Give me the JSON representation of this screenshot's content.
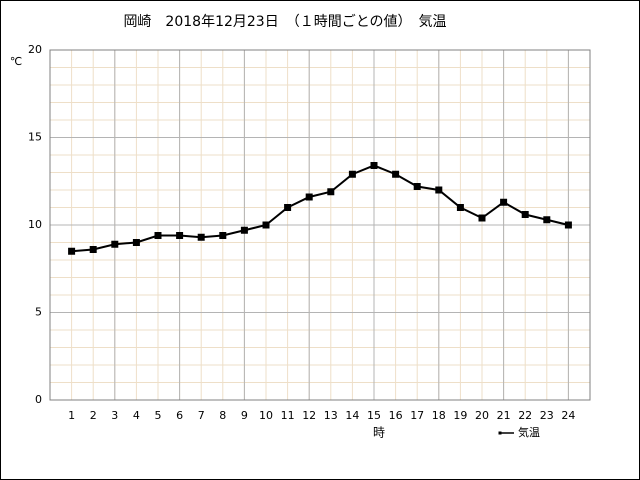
{
  "chart_data": {
    "type": "line",
    "title": "岡崎　2018年12月23日　（１時間ごとの値）　気温",
    "ylabel": "℃",
    "xlabel": "時",
    "x": [
      1,
      2,
      3,
      4,
      5,
      6,
      7,
      8,
      9,
      10,
      11,
      12,
      13,
      14,
      15,
      16,
      17,
      18,
      19,
      20,
      21,
      22,
      23,
      24
    ],
    "series": [
      {
        "name": "気温",
        "color": "#000000",
        "values": [
          8.5,
          8.6,
          8.9,
          9.0,
          9.4,
          9.4,
          9.3,
          9.4,
          9.7,
          10.0,
          11.0,
          11.6,
          11.9,
          12.9,
          13.4,
          12.9,
          12.2,
          12.0,
          11.0,
          10.4,
          11.3,
          10.6,
          10.3,
          10.0
        ]
      }
    ],
    "xlim": [
      0,
      25
    ],
    "xticks": [
      1,
      2,
      3,
      4,
      5,
      6,
      7,
      8,
      9,
      10,
      11,
      12,
      13,
      14,
      15,
      16,
      17,
      18,
      19,
      20,
      21,
      22,
      23,
      24
    ],
    "ylim": [
      0,
      20
    ],
    "yticks": [
      0,
      5,
      10,
      15,
      20
    ],
    "grid": true,
    "major_xgrid_every": 3,
    "minor_grid_step": 1,
    "legend": "lower right"
  }
}
